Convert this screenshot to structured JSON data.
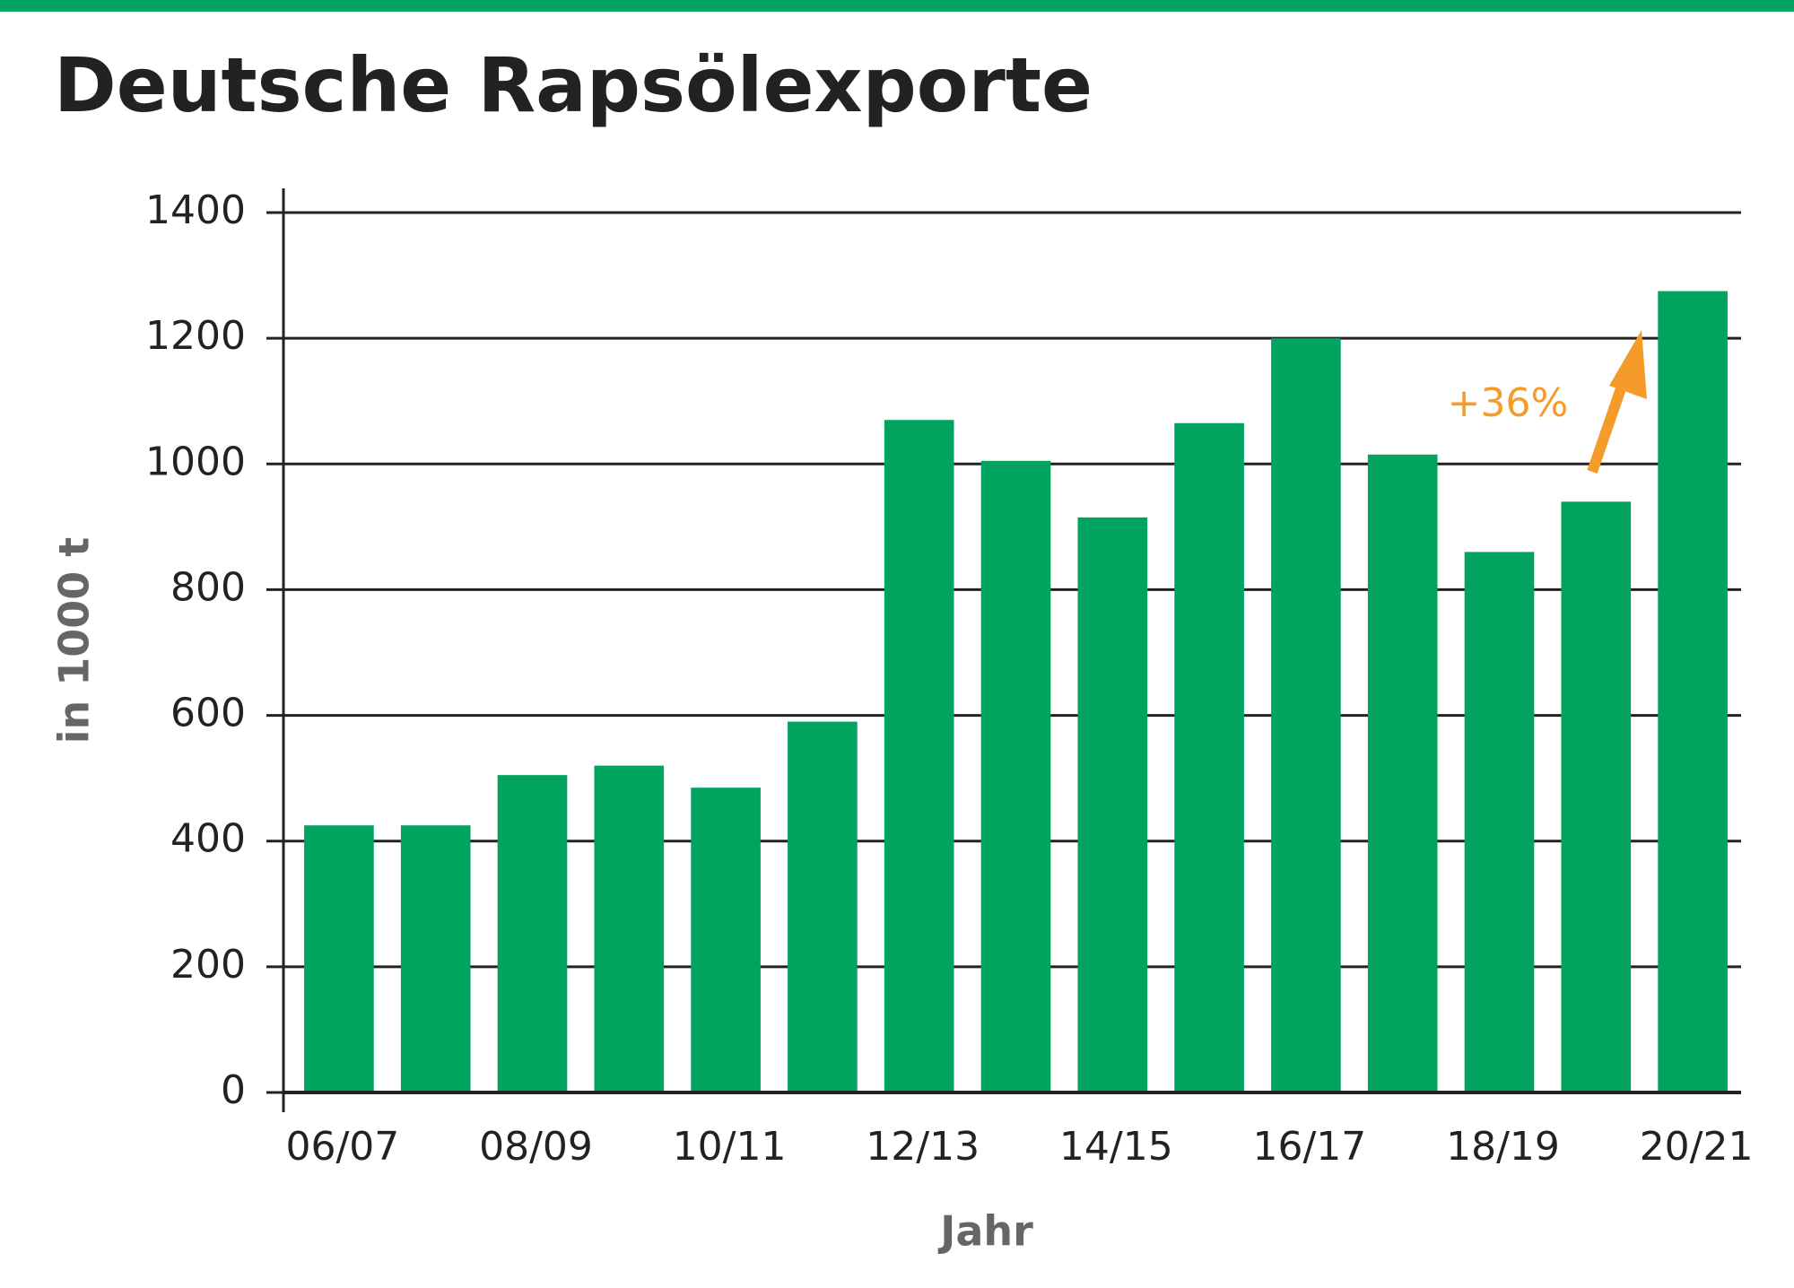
{
  "chart_data": {
    "type": "bar",
    "title": "Deutsche Rapsölexporte",
    "x_label": "Jahr",
    "y_label": "in 1000 t",
    "annotation": "+36%",
    "categories": [
      "06/07",
      null,
      "08/09",
      null,
      "10/11",
      null,
      "12/13",
      null,
      "14/15",
      null,
      "16/17",
      null,
      "18/19",
      null,
      "20/21"
    ],
    "values": [
      425,
      425,
      505,
      520,
      485,
      590,
      1070,
      1005,
      915,
      1065,
      1200,
      1015,
      860,
      940,
      1275
    ],
    "color": "#00a45e",
    "annotation_color": "#f59b2a",
    "ylim": [
      0,
      1400
    ],
    "yticks": [
      0,
      200,
      400,
      600,
      800,
      1000,
      1200,
      1400
    ],
    "grid": true
  }
}
